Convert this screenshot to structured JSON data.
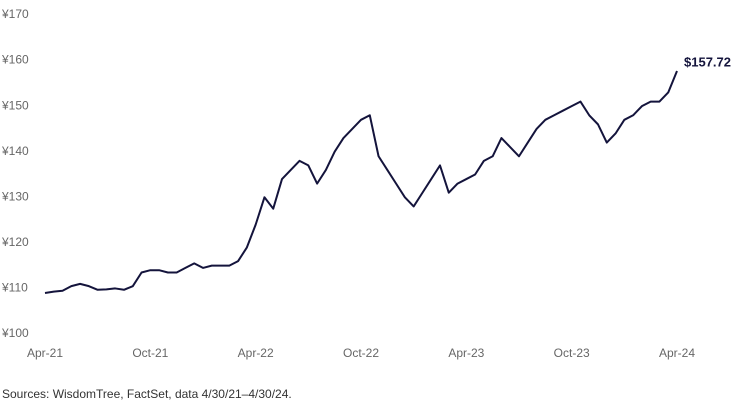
{
  "chart_data": {
    "type": "line",
    "categories": [
      "Apr-21",
      null,
      null,
      null,
      null,
      null,
      null,
      null,
      null,
      null,
      null,
      null,
      "Oct-21",
      null,
      null,
      null,
      null,
      null,
      null,
      null,
      null,
      null,
      null,
      null,
      "Apr-22",
      null,
      null,
      null,
      null,
      null,
      null,
      null,
      null,
      null,
      null,
      null,
      "Oct-22",
      null,
      null,
      null,
      null,
      null,
      null,
      null,
      null,
      null,
      null,
      null,
      "Apr-23",
      null,
      null,
      null,
      null,
      null,
      null,
      null,
      null,
      null,
      null,
      null,
      "Oct-23",
      null,
      null,
      null,
      null,
      null,
      null,
      null,
      null,
      null,
      null,
      null,
      "Apr-24"
    ],
    "values": [
      109,
      109.3,
      109.5,
      110.5,
      111,
      110.5,
      109.7,
      109.8,
      110,
      109.7,
      110.5,
      113.5,
      114,
      114,
      113.5,
      113.5,
      114.5,
      115.5,
      114.5,
      115,
      115,
      115,
      116,
      119,
      124,
      130,
      127.5,
      134,
      136,
      138,
      137,
      133,
      136,
      140,
      143,
      145,
      147,
      148,
      139,
      136,
      133,
      130,
      128,
      131,
      134,
      137,
      131,
      133,
      134,
      135,
      138,
      139,
      143,
      141,
      139,
      142,
      145,
      147,
      148,
      149,
      150,
      151,
      148,
      146,
      142,
      144,
      147,
      148,
      150,
      151,
      151,
      153,
      157.72
    ],
    "value_labels": [
      null,
      null,
      null,
      null,
      null,
      null,
      null,
      null,
      null,
      null,
      null,
      null,
      null,
      null,
      null,
      null,
      null,
      null,
      null,
      null,
      null,
      null,
      null,
      null,
      null,
      null,
      null,
      null,
      null,
      null,
      null,
      null,
      null,
      null,
      null,
      null,
      null,
      null,
      null,
      null,
      null,
      null,
      null,
      null,
      null,
      null,
      null,
      null,
      null,
      null,
      null,
      null,
      null,
      null,
      null,
      null,
      null,
      null,
      null,
      null,
      null,
      null,
      null,
      null,
      null,
      null,
      null,
      null,
      null,
      null,
      null,
      null,
      "$157.72"
    ],
    "color": "#14143c",
    "ylim": [
      100,
      170
    ],
    "yticks": [
      {
        "value": 100,
        "label": "¥100"
      },
      {
        "value": 110,
        "label": "¥110"
      },
      {
        "value": 120,
        "label": "¥120"
      },
      {
        "value": 130,
        "label": "¥130"
      },
      {
        "value": 140,
        "label": "¥140"
      },
      {
        "value": 150,
        "label": "¥150"
      },
      {
        "value": 160,
        "label": "¥160"
      },
      {
        "value": 170,
        "label": "¥170"
      }
    ],
    "source": "Sources: WisdomTree, FactSet, data 4/30/21–4/30/24."
  }
}
